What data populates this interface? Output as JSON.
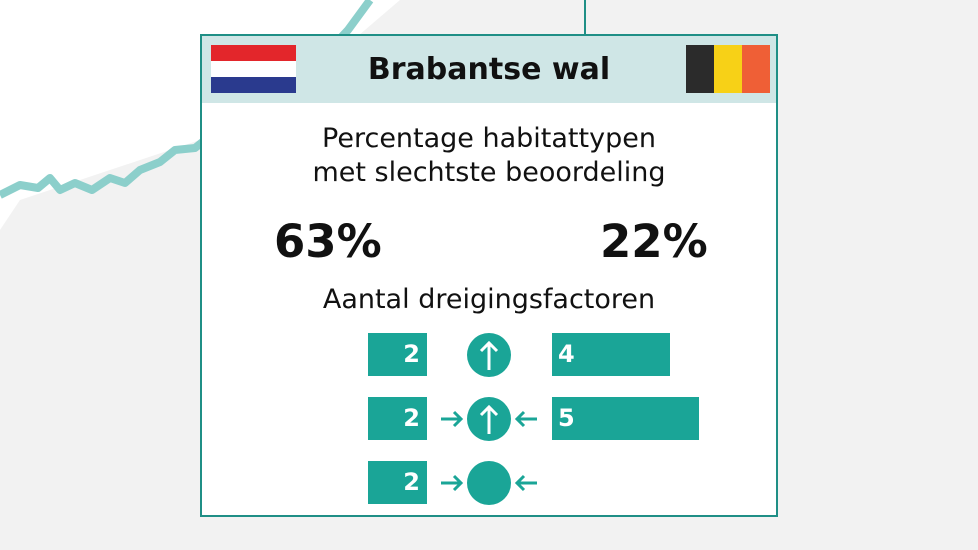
{
  "title": "Brabantse wal",
  "flags": {
    "left": {
      "country": "Netherlands",
      "colors": [
        "#e3262b",
        "#ffffff",
        "#2a3a8e"
      ]
    },
    "right": {
      "country": "Belgium",
      "colors": [
        "#2b2b2b",
        "#f7d117",
        "#ef5f36"
      ]
    }
  },
  "subtitle_line1": "Percentage habitattypen",
  "subtitle_line2": "met slechtste beoordeling",
  "percentages": {
    "nl": "63%",
    "be": "22%"
  },
  "threats_title": "Aantal dreigingsfactoren",
  "threat_rows": [
    {
      "icon": "arrow-up-circle-icon",
      "nl": "2",
      "be": "4"
    },
    {
      "icon": "inward-arrows-up-circle-icon",
      "nl": "2",
      "be": "5"
    },
    {
      "icon": "inward-arrows-circle-icon",
      "nl": "2",
      "be": ""
    }
  ],
  "colors": {
    "accent": "#1aa597",
    "border": "#1f8f86",
    "header_bg": "#cfe6e6",
    "border_line": "#8ccfcb"
  }
}
